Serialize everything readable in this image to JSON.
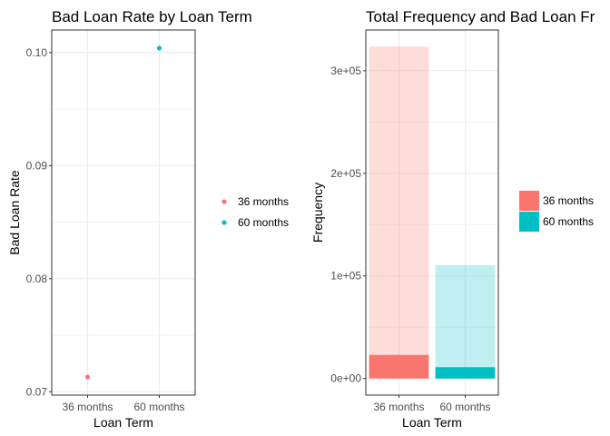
{
  "chart_data": [
    {
      "type": "scatter",
      "title": "Bad Loan Rate by Loan Term",
      "xlabel": "Loan Term",
      "ylabel": "Bad Loan Rate",
      "categories": [
        "36 months",
        "60 months"
      ],
      "values": [
        0.0713,
        0.1004
      ],
      "ylim": [
        0.0697,
        0.102
      ],
      "yticks": [
        0.07,
        0.08,
        0.09,
        0.1
      ],
      "ytick_labels": [
        "0.07",
        "0.08",
        "0.09",
        "0.10"
      ],
      "grid": true,
      "legend": {
        "position": "right",
        "entries": [
          {
            "label": "36 months",
            "color": "#F8766D"
          },
          {
            "label": "60 months",
            "color": "#00BFC4"
          }
        ]
      }
    },
    {
      "type": "bar",
      "title": "Total Frequency and Bad Loan Fr",
      "xlabel": "Loan Term",
      "ylabel": "Frequency",
      "categories": [
        "36 months",
        "60 months"
      ],
      "series": [
        {
          "values": [
            323500,
            110500
          ],
          "opacity": 0.25
        },
        {
          "values": [
            23000,
            11000
          ],
          "opacity": 1
        }
      ],
      "ylim": [
        -16200,
        339700
      ],
      "yticks": [
        0,
        100000,
        200000,
        300000
      ],
      "ytick_labels": [
        "0e+00",
        "1e+05",
        "2e+05",
        "3e+05"
      ],
      "grid": true,
      "legend": {
        "position": "right",
        "entries": [
          {
            "label": "36 months",
            "color": "#F8766D"
          },
          {
            "label": "60 months",
            "color": "#00BFC4"
          }
        ]
      }
    }
  ]
}
